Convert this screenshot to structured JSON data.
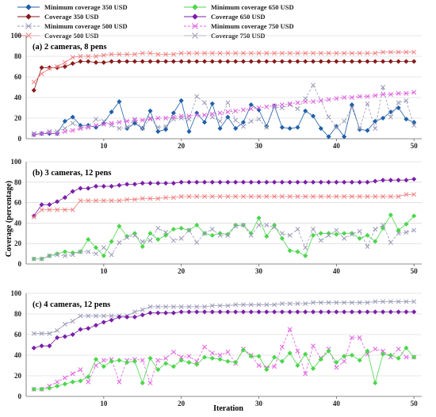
{
  "colors": {
    "c350": "#1f5fa8",
    "c500": "#f08080",
    "c650": "#7a1fa8",
    "c750": "#4cd64c",
    "c500_cov": "#f08080",
    "c650_min": "#6a3dd8",
    "maroon": "#8b1a1a",
    "axis": "#666666"
  },
  "legend": [
    {
      "label": "Minimum coverage 350 USD",
      "color": "#1f5fa8",
      "marker": "diamond",
      "dashed": false
    },
    {
      "label": "Coverage 350 USD",
      "color": "#8b1a1a",
      "marker": "diamond",
      "dashed": false
    },
    {
      "label": "Minimum coverage 500 USD",
      "color": "#9a9ab8",
      "marker": "x",
      "dashed": true
    },
    {
      "label": "Coverage 500 USD",
      "color": "#f08080",
      "marker": "x",
      "dashed": false
    },
    {
      "label": "Minimum coverage 650 USD",
      "color": "#4cd64c",
      "marker": "diamond",
      "dashed": false
    },
    {
      "label": "Coverage 650 USD",
      "color": "#7a1fa8",
      "marker": "diamond",
      "dashed": false
    },
    {
      "label": "Minimum coverage 750 USD",
      "color": "#e060e0",
      "marker": "x",
      "dashed": true
    },
    {
      "label": "Coverage 750 USD",
      "color": "#9a9ab8",
      "marker": "x",
      "dashed": false
    }
  ],
  "ylabel": "Coverage (percentage)",
  "xlabel": "Iteration",
  "chart_data": [
    {
      "type": "line",
      "title": "(a) 2 cameras, 8 pens",
      "ylim": [
        0,
        100
      ],
      "xlim": [
        0,
        51
      ],
      "xticks": [
        10,
        20,
        30,
        40,
        50
      ],
      "yticks": [
        0,
        20,
        40,
        60,
        80,
        100
      ],
      "x": [
        1,
        2,
        3,
        4,
        5,
        6,
        7,
        8,
        9,
        10,
        11,
        12,
        13,
        14,
        15,
        16,
        17,
        18,
        19,
        20,
        21,
        22,
        23,
        24,
        25,
        26,
        27,
        28,
        29,
        30,
        31,
        32,
        33,
        34,
        35,
        36,
        37,
        38,
        39,
        40,
        41,
        42,
        43,
        44,
        45,
        46,
        47,
        48,
        49,
        50
      ],
      "series": [
        {
          "name": "Coverage 350 USD",
          "color": "#8b1a1a",
          "marker": "diamond",
          "dashed": false,
          "values": [
            47,
            69,
            69,
            69,
            70,
            73,
            75,
            75,
            74,
            74,
            75,
            75,
            75,
            75,
            75,
            75,
            75,
            75,
            75,
            75,
            75,
            75,
            75,
            75,
            75,
            75,
            75,
            75,
            75,
            75,
            75,
            75,
            75,
            75,
            75,
            75,
            75,
            75,
            75,
            75,
            75,
            75,
            75,
            75,
            75,
            75,
            75,
            75,
            75,
            75
          ]
        },
        {
          "name": "Coverage 500 USD",
          "color": "#f08080",
          "marker": "x",
          "dashed": false,
          "values": [
            55,
            63,
            68,
            70,
            74,
            79,
            80,
            80,
            80,
            81,
            82,
            82,
            82,
            82,
            83,
            83,
            82,
            82,
            82,
            83,
            83,
            83,
            83,
            83,
            83,
            83,
            83,
            83,
            83,
            83,
            83,
            83,
            83,
            83,
            83,
            83,
            83,
            83,
            83,
            83,
            83,
            83,
            83,
            83,
            83,
            84,
            84,
            84,
            84,
            84
          ]
        },
        {
          "name": "Minimum coverage 350 USD",
          "color": "#1f5fa8",
          "marker": "diamond",
          "dashed": false,
          "values": [
            4,
            5,
            5,
            5,
            17,
            21,
            13,
            13,
            11,
            15,
            26,
            36,
            10,
            15,
            10,
            27,
            7,
            9,
            25,
            37,
            7,
            25,
            16,
            34,
            10,
            21,
            10,
            16,
            33,
            28,
            12,
            32,
            11,
            10,
            11,
            27,
            22,
            10,
            2,
            12,
            2,
            33,
            9,
            8,
            17,
            20,
            26,
            30,
            19,
            16
          ]
        },
        {
          "name": "Minimum coverage 500 USD",
          "color": "#9a9ab8",
          "marker": "x",
          "dashed": true,
          "values": [
            5,
            5,
            7,
            7,
            10,
            15,
            11,
            12,
            19,
            17,
            13,
            10,
            11,
            19,
            10,
            20,
            11,
            12,
            19,
            20,
            19,
            41,
            35,
            21,
            17,
            35,
            18,
            12,
            17,
            19,
            11,
            31,
            30,
            33,
            29,
            39,
            52,
            37,
            21,
            11,
            17,
            30,
            10,
            34,
            10,
            50,
            21,
            35,
            37,
            13
          ]
        },
        {
          "name": "Minimum coverage 750 USD",
          "color": "#e060e0",
          "marker": "x",
          "dashed": true,
          "values": [
            4,
            5,
            6,
            5,
            7,
            8,
            10,
            11,
            13,
            14,
            15,
            16,
            17,
            18,
            18,
            19,
            20,
            20,
            21,
            22,
            22,
            23,
            23,
            24,
            25,
            26,
            27,
            28,
            29,
            30,
            31,
            32,
            33,
            34,
            35,
            36,
            36,
            37,
            38,
            39,
            40,
            40,
            41,
            41,
            42,
            43,
            43,
            44,
            44,
            45
          ]
        }
      ]
    },
    {
      "type": "line",
      "title": "(b) 3 cameras, 12 pens",
      "ylim": [
        0,
        100
      ],
      "xlim": [
        0,
        51
      ],
      "xticks": [
        10,
        20,
        30,
        40,
        50
      ],
      "yticks": [
        0,
        20,
        40,
        60,
        80,
        100
      ],
      "x": [
        1,
        2,
        3,
        4,
        5,
        6,
        7,
        8,
        9,
        10,
        11,
        12,
        13,
        14,
        15,
        16,
        17,
        18,
        19,
        20,
        21,
        22,
        23,
        24,
        25,
        26,
        27,
        28,
        29,
        30,
        31,
        32,
        33,
        34,
        35,
        36,
        37,
        38,
        39,
        40,
        41,
        42,
        43,
        44,
        45,
        46,
        47,
        48,
        49,
        50
      ],
      "series": [
        {
          "name": "Coverage 650 USD",
          "color": "#7a1fa8",
          "marker": "diamond",
          "dashed": false,
          "values": [
            47,
            58,
            58,
            61,
            65,
            71,
            74,
            74,
            76,
            76,
            76,
            77,
            78,
            78,
            79,
            79,
            79,
            79,
            79,
            80,
            80,
            80,
            80,
            80,
            80,
            80,
            80,
            80,
            80,
            80,
            80,
            80,
            80,
            80,
            80,
            80,
            80,
            80,
            80,
            80,
            80,
            80,
            80,
            80,
            81,
            82,
            82,
            82,
            82,
            83
          ]
        },
        {
          "name": "Coverage 500 USD",
          "color": "#f08080",
          "marker": "x",
          "dashed": false,
          "values": [
            46,
            53,
            53,
            53,
            53,
            53,
            62,
            62,
            62,
            62,
            62,
            62,
            63,
            63,
            64,
            64,
            64,
            65,
            65,
            66,
            66,
            66,
            66,
            66,
            66,
            66,
            66,
            66,
            66,
            66,
            66,
            66,
            66,
            66,
            66,
            66,
            66,
            66,
            66,
            66,
            66,
            66,
            66,
            66,
            66,
            66,
            66,
            66,
            68,
            68
          ]
        },
        {
          "name": "Minimum coverage 650 USD",
          "color": "#4cd64c",
          "marker": "diamond",
          "dashed": false,
          "values": [
            5,
            5,
            8,
            10,
            12,
            11,
            12,
            24,
            16,
            8,
            22,
            37,
            27,
            30,
            17,
            30,
            24,
            28,
            34,
            35,
            33,
            38,
            30,
            28,
            30,
            29,
            38,
            38,
            30,
            45,
            27,
            38,
            25,
            13,
            12,
            8,
            28,
            30,
            30,
            29,
            30,
            30,
            25,
            28,
            22,
            35,
            48,
            33,
            39,
            47
          ]
        },
        {
          "name": "Minimum coverage 750 USD",
          "color": "#9a9ab8",
          "marker": "x",
          "dashed": true,
          "values": [
            5,
            5,
            8,
            9,
            8,
            9,
            12,
            12,
            10,
            16,
            9,
            21,
            26,
            28,
            22,
            23,
            35,
            31,
            23,
            25,
            33,
            21,
            30,
            34,
            28,
            28,
            37,
            38,
            28,
            38,
            38,
            36,
            30,
            28,
            34,
            16,
            34,
            23,
            28,
            33,
            25,
            29,
            32,
            17,
            34,
            38,
            21,
            30,
            31,
            33
          ]
        }
      ]
    },
    {
      "type": "line",
      "title": "(c) 4 cameras, 12 pens",
      "ylim": [
        0,
        100
      ],
      "xlim": [
        0,
        51
      ],
      "xticks": [
        10,
        20,
        30,
        40,
        50
      ],
      "yticks": [
        0,
        20,
        40,
        60,
        80,
        100
      ],
      "x": [
        1,
        2,
        3,
        4,
        5,
        6,
        7,
        8,
        9,
        10,
        11,
        12,
        13,
        14,
        15,
        16,
        17,
        18,
        19,
        20,
        21,
        22,
        23,
        24,
        25,
        26,
        27,
        28,
        29,
        30,
        31,
        32,
        33,
        34,
        35,
        36,
        37,
        38,
        39,
        40,
        41,
        42,
        43,
        44,
        45,
        46,
        47,
        48,
        49,
        50
      ],
      "series": [
        {
          "name": "Coverage 750 USD",
          "color": "#9a9ab8",
          "marker": "x",
          "dashed": false,
          "values": [
            61,
            61,
            61,
            64,
            70,
            73,
            78,
            78,
            78,
            78,
            78,
            78,
            78,
            82,
            84,
            87,
            87,
            87,
            87,
            87,
            87,
            87,
            87,
            88,
            88,
            88,
            89,
            89,
            89,
            89,
            89,
            89,
            90,
            90,
            90,
            90,
            91,
            91,
            91,
            91,
            91,
            91,
            91,
            91,
            92,
            92,
            92,
            92,
            92,
            92
          ]
        },
        {
          "name": "Coverage 650 USD",
          "color": "#7a1fa8",
          "marker": "diamond",
          "dashed": false,
          "values": [
            47,
            49,
            49,
            57,
            58,
            60,
            65,
            66,
            69,
            72,
            74,
            77,
            77,
            77,
            79,
            81,
            81,
            81,
            81,
            82,
            82,
            82,
            82,
            82,
            82,
            82,
            82,
            82,
            82,
            82,
            82,
            82,
            82,
            82,
            82,
            82,
            82,
            82,
            82,
            82,
            82,
            82,
            82,
            82,
            82,
            82,
            82,
            82,
            82,
            82
          ]
        },
        {
          "name": "Minimum coverage 750 USD",
          "color": "#e060e0",
          "marker": "x",
          "dashed": true,
          "values": [
            7,
            7,
            10,
            14,
            18,
            22,
            26,
            14,
            30,
            35,
            36,
            14,
            35,
            36,
            35,
            13,
            35,
            37,
            43,
            38,
            39,
            34,
            48,
            42,
            40,
            43,
            32,
            46,
            40,
            30,
            28,
            29,
            48,
            65,
            44,
            22,
            49,
            37,
            46,
            28,
            34,
            57,
            57,
            41,
            46,
            44,
            38,
            46,
            38,
            38
          ]
        },
        {
          "name": "Minimum coverage 650 USD",
          "color": "#4cd64c",
          "marker": "diamond",
          "dashed": false,
          "values": [
            7,
            7,
            8,
            10,
            12,
            14,
            15,
            19,
            36,
            29,
            34,
            35,
            33,
            34,
            13,
            37,
            26,
            32,
            29,
            35,
            33,
            31,
            38,
            37,
            36,
            34,
            33,
            45,
            39,
            39,
            26,
            38,
            34,
            42,
            30,
            41,
            27,
            36,
            44,
            33,
            39,
            40,
            35,
            44,
            13,
            41,
            40,
            37,
            47,
            38
          ]
        }
      ]
    }
  ]
}
